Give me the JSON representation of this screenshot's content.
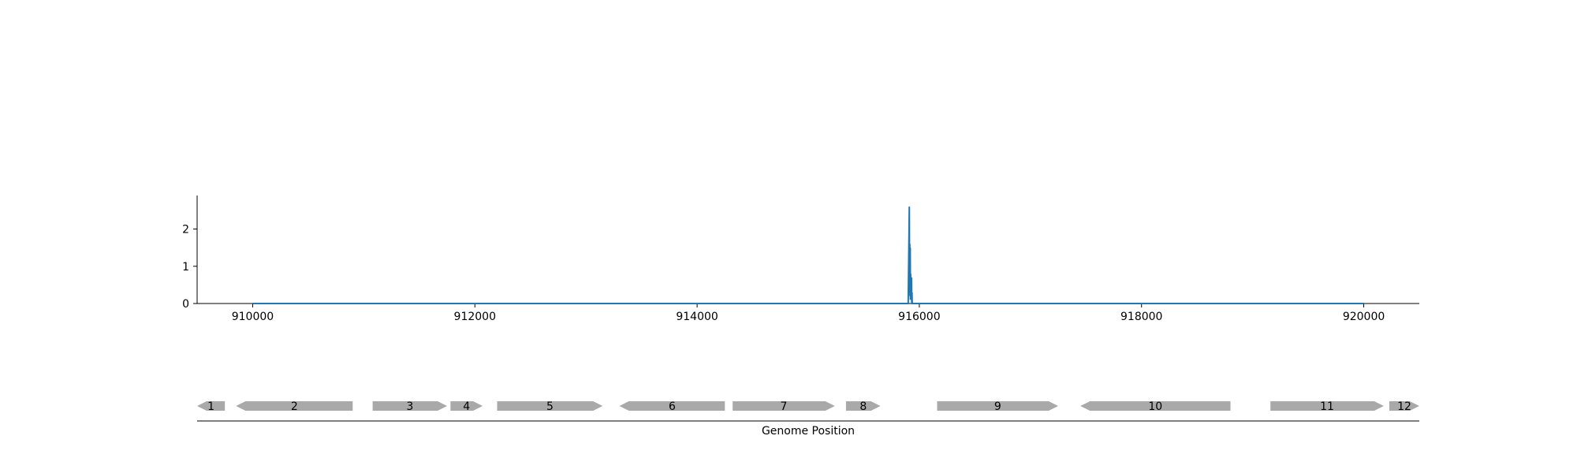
{
  "chart_data": {
    "type": "line",
    "title": "",
    "xlabel": "Genome Position",
    "ylabel": "",
    "xlim": [
      909500,
      920500
    ],
    "ylim": [
      0,
      2.9
    ],
    "x_ticks": [
      910000,
      912000,
      914000,
      916000,
      918000,
      920000
    ],
    "y_ticks": [
      0,
      1,
      2
    ],
    "grid": false,
    "series": [
      {
        "name": "",
        "color": "#1f77b4",
        "x": [
          910000,
          915900,
          915910,
          915912,
          915914,
          915916,
          915918,
          915920,
          915922,
          915924,
          915926,
          915928,
          915930,
          915932,
          915934,
          915936,
          915940,
          920000
        ],
        "y": [
          0,
          0,
          2.6,
          0.3,
          1.6,
          0.2,
          1.5,
          0.1,
          0.8,
          0.2,
          0.6,
          0.1,
          0.7,
          0.0,
          0.3,
          0.0,
          0,
          0
        ]
      }
    ],
    "genes": [
      {
        "label": "1",
        "start": 909500,
        "end": 909750,
        "strand": "-"
      },
      {
        "label": "2",
        "start": 909850,
        "end": 910900,
        "strand": "-"
      },
      {
        "label": "3",
        "start": 911080,
        "end": 911750,
        "strand": "+"
      },
      {
        "label": "4",
        "start": 911780,
        "end": 912070,
        "strand": "+"
      },
      {
        "label": "5",
        "start": 912200,
        "end": 913150,
        "strand": "+"
      },
      {
        "label": "6",
        "start": 913300,
        "end": 914250,
        "strand": "-"
      },
      {
        "label": "7",
        "start": 914320,
        "end": 915240,
        "strand": "+"
      },
      {
        "label": "8",
        "start": 915340,
        "end": 915650,
        "strand": "+"
      },
      {
        "label": "9",
        "start": 916160,
        "end": 917250,
        "strand": "+"
      },
      {
        "label": "10",
        "start": 917450,
        "end": 918800,
        "strand": "-"
      },
      {
        "label": "11",
        "start": 919160,
        "end": 920180,
        "strand": "+"
      },
      {
        "label": "12",
        "start": 920230,
        "end": 920500,
        "strand": "+"
      }
    ],
    "gene_color": "#a9a9a9",
    "line_color": "#1f77b4"
  }
}
